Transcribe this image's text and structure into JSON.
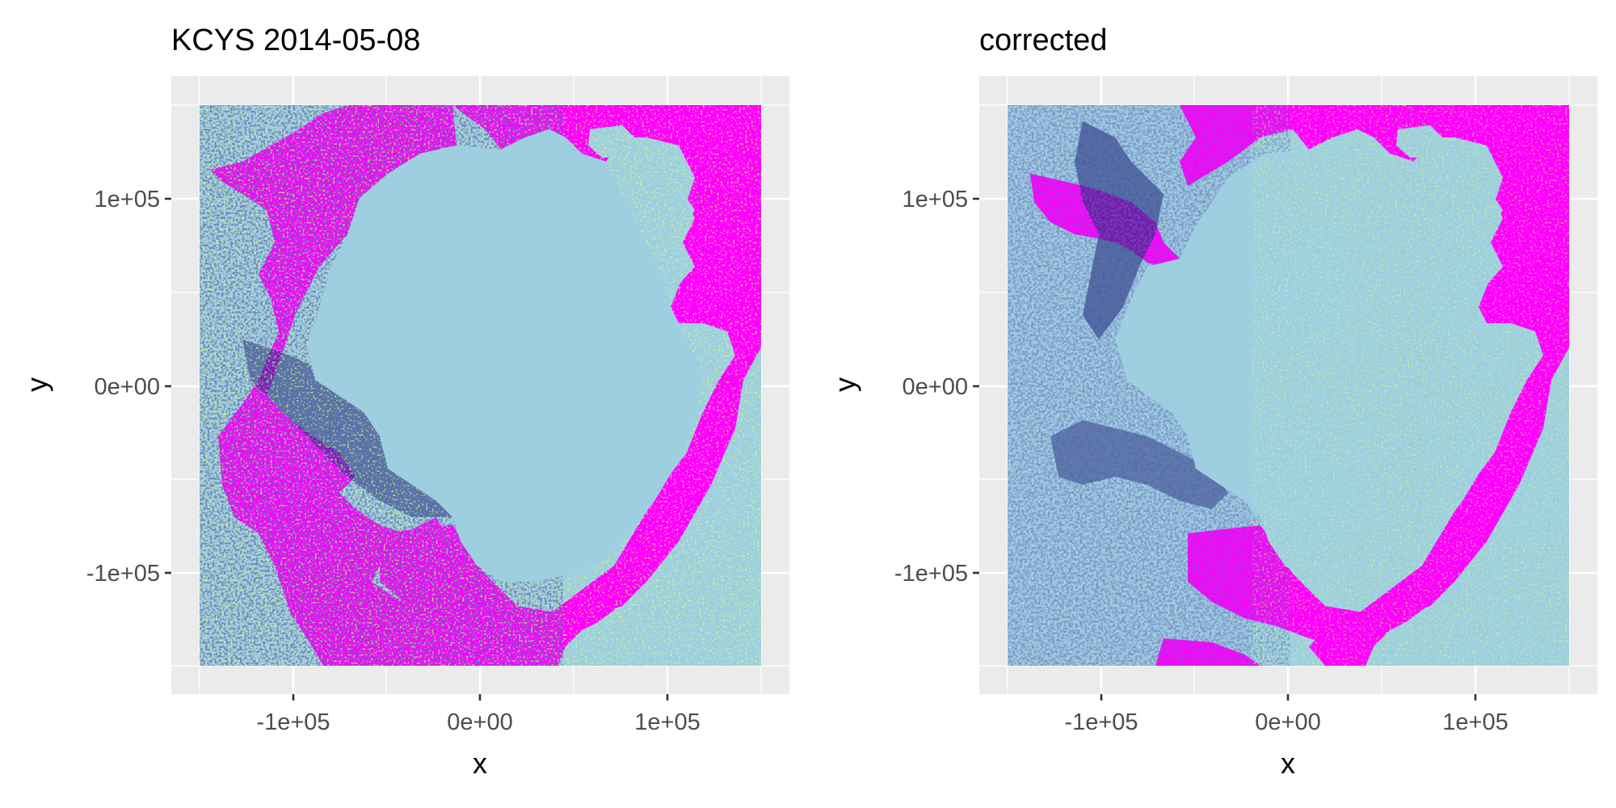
{
  "chart_data": [
    {
      "type": "heatmap",
      "title": "KCYS 2014-05-08",
      "xlabel": "x",
      "ylabel": "y",
      "xlim": [
        -150000,
        150000
      ],
      "ylim": [
        -150000,
        150000
      ],
      "xticks": [
        -100000,
        0,
        100000
      ],
      "yticks": [
        -100000,
        0,
        100000
      ],
      "xtick_labels": [
        "-1e+05",
        "0e+00",
        "1e+05"
      ],
      "ytick_labels": [
        "-1e+05",
        "0e+00",
        "1e+05"
      ],
      "grid": true,
      "colors": {
        "background": "#9ecfe0",
        "echo": "#ff00ff",
        "clutter": "#1e2a78",
        "noise": "#b5ff2e",
        "panel": "#ebebeb"
      }
    },
    {
      "type": "heatmap",
      "title": "corrected",
      "xlabel": "x",
      "ylabel": "y",
      "xlim": [
        -150000,
        150000
      ],
      "ylim": [
        -150000,
        150000
      ],
      "xticks": [
        -100000,
        0,
        100000
      ],
      "yticks": [
        -100000,
        0,
        100000
      ],
      "xtick_labels": [
        "-1e+05",
        "0e+00",
        "1e+05"
      ],
      "ytick_labels": [
        "-1e+05",
        "0e+00",
        "1e+05"
      ],
      "grid": true,
      "colors": {
        "background": "#9ecfe0",
        "echo": "#ff00ff",
        "clutter": "#1e2a78",
        "noise": "#b5ff2e",
        "panel": "#ebebeb"
      }
    }
  ]
}
